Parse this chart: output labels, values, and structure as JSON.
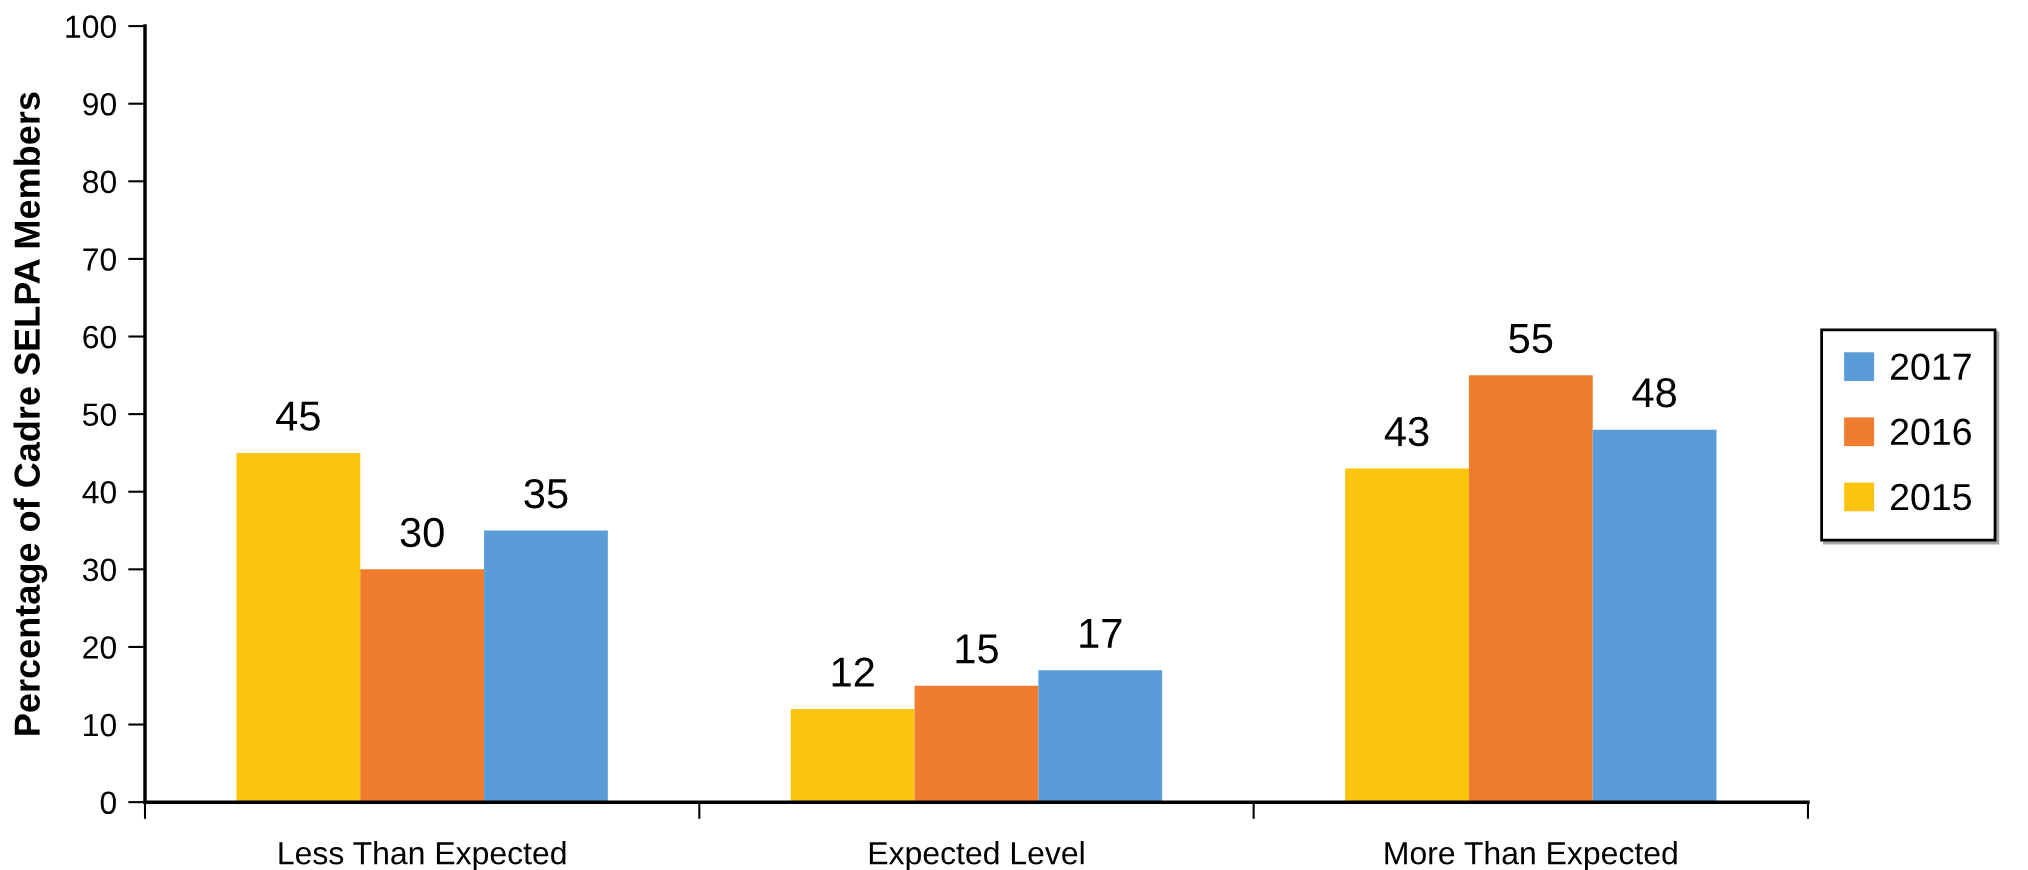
{
  "chart_data": {
    "type": "bar",
    "ylabel": "Percentage of Cadre SELPA Members",
    "categories": [
      "Less Than Expected",
      "Expected Level",
      "More Than Expected"
    ],
    "series": [
      {
        "name": "2015",
        "color": "#fdc40d",
        "values": [
          45,
          12,
          43
        ]
      },
      {
        "name": "2016",
        "color": "#f07c30",
        "values": [
          30,
          15,
          55
        ]
      },
      {
        "name": "2017",
        "color": "#5b9bd8",
        "values": [
          35,
          17,
          48
        ]
      }
    ],
    "ylim": [
      0,
      100
    ],
    "yticks": [
      0,
      10,
      20,
      30,
      40,
      50,
      60,
      70,
      80,
      90,
      100
    ],
    "data_labels": true,
    "legend": "right",
    "grid": false
  }
}
